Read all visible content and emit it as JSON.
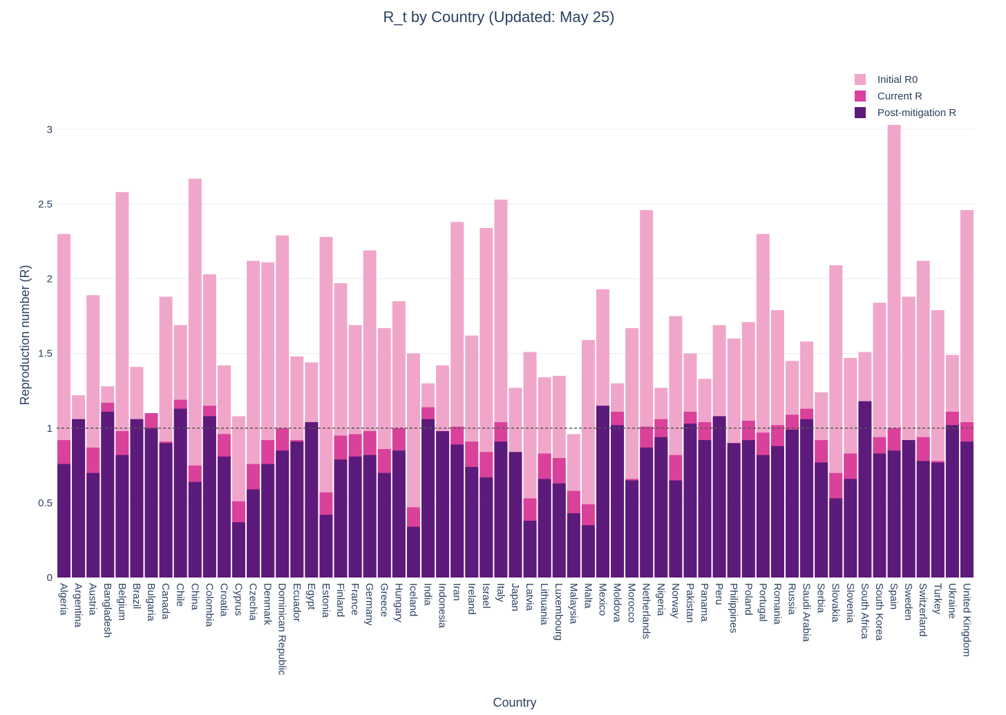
{
  "chart_data": {
    "type": "bar",
    "barmode": "overlay",
    "title": "R_t by Country (Updated: May 25)",
    "xlabel": "Country",
    "ylabel": "Reproduction number (R)",
    "ylim": [
      0,
      3.0
    ],
    "yticks": [
      0,
      0.5,
      1,
      1.5,
      2,
      2.5,
      3
    ],
    "ytick_labels": [
      "0",
      "0.5",
      "1",
      "1.5",
      "2",
      "2.5",
      "3"
    ],
    "grid": true,
    "legend_position": "top-right",
    "reference_line": {
      "y": 1,
      "style": "dashed"
    },
    "categories": [
      "Algeria",
      "Argentina",
      "Austria",
      "Bangladesh",
      "Belgium",
      "Brazil",
      "Bulgaria",
      "Canada",
      "Chile",
      "China",
      "Colombia",
      "Croatia",
      "Cyprus",
      "Czechia",
      "Denmark",
      "Dominican Republic",
      "Ecuador",
      "Egypt",
      "Estonia",
      "Finland",
      "France",
      "Germany",
      "Greece",
      "Hungary",
      "Iceland",
      "India",
      "Indonesia",
      "Iran",
      "Ireland",
      "Israel",
      "Italy",
      "Japan",
      "Latvia",
      "Lithuania",
      "Luxembourg",
      "Malaysia",
      "Malta",
      "Mexico",
      "Moldova",
      "Morocco",
      "Netherlands",
      "Nigeria",
      "Norway",
      "Pakistan",
      "Panama",
      "Peru",
      "Philippines",
      "Poland",
      "Portugal",
      "Romania",
      "Russia",
      "Saudi Arabia",
      "Serbia",
      "Slovakia",
      "Slovenia",
      "South Africa",
      "South Korea",
      "Spain",
      "Sweden",
      "Switzerland",
      "Turkey",
      "Ukraine",
      "United Kingdom"
    ],
    "series": [
      {
        "name": "Initial R0",
        "color": "#f0a6ca",
        "values": [
          2.3,
          1.22,
          1.89,
          1.28,
          2.58,
          1.41,
          1.1,
          1.88,
          1.69,
          2.67,
          2.03,
          1.42,
          1.08,
          2.12,
          2.11,
          2.29,
          1.48,
          1.44,
          2.28,
          1.97,
          1.69,
          2.19,
          1.67,
          1.85,
          1.5,
          1.3,
          1.42,
          2.38,
          1.62,
          2.34,
          2.53,
          1.27,
          1.51,
          1.34,
          1.35,
          0.96,
          1.59,
          1.93,
          1.3,
          1.67,
          2.46,
          1.27,
          1.75,
          1.5,
          1.33,
          1.69,
          1.6,
          1.71,
          2.3,
          1.79,
          1.45,
          1.58,
          1.24,
          2.09,
          1.47,
          1.51,
          1.84,
          3.03,
          1.88,
          2.12,
          1.79,
          1.49,
          2.46
        ]
      },
      {
        "name": "Current R",
        "color": "#d9419a",
        "values": [
          0.92,
          1.06,
          0.87,
          1.17,
          0.98,
          1.06,
          1.1,
          0.91,
          1.19,
          0.75,
          1.15,
          0.96,
          0.51,
          0.76,
          0.92,
          1.0,
          0.92,
          1.04,
          0.57,
          0.95,
          0.96,
          0.98,
          0.86,
          1.0,
          0.47,
          1.14,
          0.98,
          1.01,
          0.91,
          0.84,
          1.04,
          0.84,
          0.53,
          0.83,
          0.8,
          0.58,
          0.49,
          1.15,
          1.11,
          0.66,
          1.01,
          1.06,
          0.82,
          1.11,
          1.04,
          1.08,
          0.9,
          1.05,
          0.97,
          1.02,
          1.09,
          1.13,
          0.92,
          0.7,
          0.83,
          1.18,
          0.94,
          1.0,
          0.92,
          0.94,
          0.78,
          1.11,
          1.04
        ]
      },
      {
        "name": "Post-mitigation R",
        "color": "#5c1a7a",
        "values": [
          0.76,
          1.06,
          0.7,
          1.11,
          0.82,
          1.06,
          1.0,
          0.9,
          1.13,
          0.64,
          1.08,
          0.81,
          0.37,
          0.59,
          0.76,
          0.85,
          0.91,
          1.04,
          0.42,
          0.79,
          0.81,
          0.82,
          0.7,
          0.85,
          0.34,
          1.06,
          0.98,
          0.89,
          0.74,
          0.67,
          0.91,
          0.84,
          0.38,
          0.66,
          0.63,
          0.43,
          0.35,
          1.15,
          1.02,
          0.65,
          0.87,
          0.94,
          0.65,
          1.03,
          0.92,
          1.08,
          0.9,
          0.92,
          0.82,
          0.88,
          0.99,
          1.06,
          0.77,
          0.53,
          0.66,
          1.18,
          0.83,
          0.85,
          0.92,
          0.78,
          0.77,
          1.02,
          0.91
        ]
      }
    ]
  }
}
